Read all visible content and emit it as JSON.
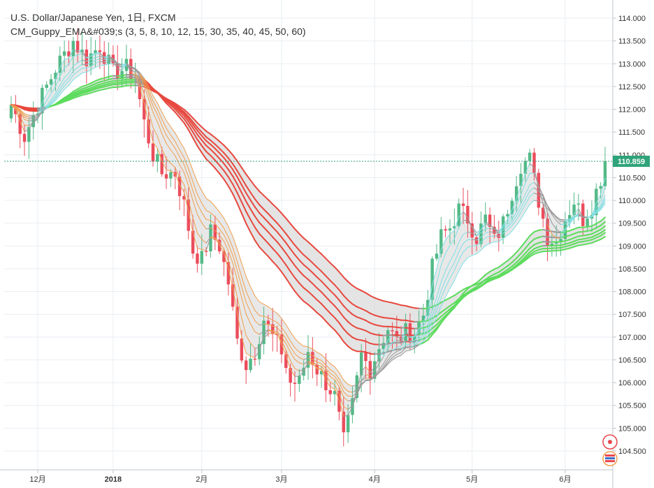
{
  "legend": {
    "symbol_line": "U.S. Dollar/Japanese Yen, 1日, FXCM",
    "indicator_line": "CM_Guppy_EMA&#039;s (3, 5, 8, 10, 12, 15, 30, 35, 40, 45, 50, 60)"
  },
  "colors": {
    "up": "#53b987",
    "down": "#eb4d5c",
    "ema_down_slow": "#e8483f",
    "ema_down_fast": "#f0a050",
    "ema_up_slow": "#5ddc5d",
    "ema_up_fast": "#7fe0e6",
    "ema_neutral": "#999999",
    "ribbon_fill": "#d9d9d9",
    "grid": "#e9eef2",
    "last_price": "#2fa37a"
  },
  "chart_data": {
    "type": "candlestick",
    "instrument": "U.S. Dollar/Japanese Yen",
    "timeframe": "1日",
    "source": "FXCM",
    "y_axis_ticks": [
      "114.000",
      "113.500",
      "113.000",
      "112.500",
      "112.000",
      "111.500",
      "111.000",
      "110.500",
      "110.000",
      "109.500",
      "109.000",
      "108.500",
      "108.000",
      "107.500",
      "107.000",
      "106.500",
      "106.000",
      "105.500",
      "105.000",
      "104.500"
    ],
    "ylim": [
      104.1,
      114.2
    ],
    "x_axis_labels": [
      "12月",
      "2018",
      "2月",
      "3月",
      "4月",
      "5月",
      "6月"
    ],
    "last_price_label": "110.859",
    "last_price": 110.859,
    "ema_lengths": [
      3,
      5,
      8,
      10,
      12,
      15,
      30,
      35,
      40,
      45,
      50,
      60
    ],
    "anchors": [
      {
        "i": 0,
        "p": 112.1
      },
      {
        "i": 3,
        "p": 111.4
      },
      {
        "i": 6,
        "p": 112.1
      },
      {
        "i": 10,
        "p": 112.9
      },
      {
        "i": 14,
        "p": 113.5
      },
      {
        "i": 17,
        "p": 113.1
      },
      {
        "i": 20,
        "p": 113.4
      },
      {
        "i": 23,
        "p": 112.8
      },
      {
        "i": 26,
        "p": 112.9
      },
      {
        "i": 28,
        "p": 112.7
      },
      {
        "i": 30,
        "p": 111.7
      },
      {
        "i": 32,
        "p": 111.0
      },
      {
        "i": 34,
        "p": 110.6
      },
      {
        "i": 37,
        "p": 110.6
      },
      {
        "i": 39,
        "p": 109.9
      },
      {
        "i": 41,
        "p": 108.9
      },
      {
        "i": 43,
        "p": 108.7
      },
      {
        "i": 45,
        "p": 109.3
      },
      {
        "i": 47,
        "p": 109.0
      },
      {
        "i": 49,
        "p": 108.2
      },
      {
        "i": 51,
        "p": 106.9
      },
      {
        "i": 53,
        "p": 106.4
      },
      {
        "i": 55,
        "p": 106.7
      },
      {
        "i": 57,
        "p": 107.4
      },
      {
        "i": 59,
        "p": 107.0
      },
      {
        "i": 61,
        "p": 106.7
      },
      {
        "i": 63,
        "p": 106.0
      },
      {
        "i": 65,
        "p": 106.0
      },
      {
        "i": 67,
        "p": 106.7
      },
      {
        "i": 69,
        "p": 106.3
      },
      {
        "i": 71,
        "p": 106.0
      },
      {
        "i": 73,
        "p": 105.7
      },
      {
        "i": 75,
        "p": 104.7
      },
      {
        "i": 77,
        "p": 105.5
      },
      {
        "i": 79,
        "p": 106.6
      },
      {
        "i": 81,
        "p": 106.3
      },
      {
        "i": 83,
        "p": 106.8
      },
      {
        "i": 85,
        "p": 107.2
      },
      {
        "i": 87,
        "p": 106.9
      },
      {
        "i": 89,
        "p": 107.1
      },
      {
        "i": 91,
        "p": 107.1
      },
      {
        "i": 93,
        "p": 107.5
      },
      {
        "i": 95,
        "p": 108.5
      },
      {
        "i": 97,
        "p": 109.2
      },
      {
        "i": 99,
        "p": 109.4
      },
      {
        "i": 101,
        "p": 109.8
      },
      {
        "i": 103,
        "p": 109.6
      },
      {
        "i": 105,
        "p": 109.2
      },
      {
        "i": 107,
        "p": 109.6
      },
      {
        "i": 109,
        "p": 109.1
      },
      {
        "i": 111,
        "p": 109.5
      },
      {
        "i": 113,
        "p": 110.2
      },
      {
        "i": 115,
        "p": 110.8
      },
      {
        "i": 117,
        "p": 110.9
      },
      {
        "i": 119,
        "p": 110.0
      },
      {
        "i": 121,
        "p": 109.2
      },
      {
        "i": 123,
        "p": 109.1
      },
      {
        "i": 125,
        "p": 109.6
      },
      {
        "i": 127,
        "p": 110.0
      },
      {
        "i": 129,
        "p": 109.6
      },
      {
        "i": 131,
        "p": 109.9
      },
      {
        "i": 133,
        "p": 110.5
      },
      {
        "i": 134,
        "p": 110.859
      }
    ],
    "bar_count": 135,
    "start_price": 111.8
  }
}
